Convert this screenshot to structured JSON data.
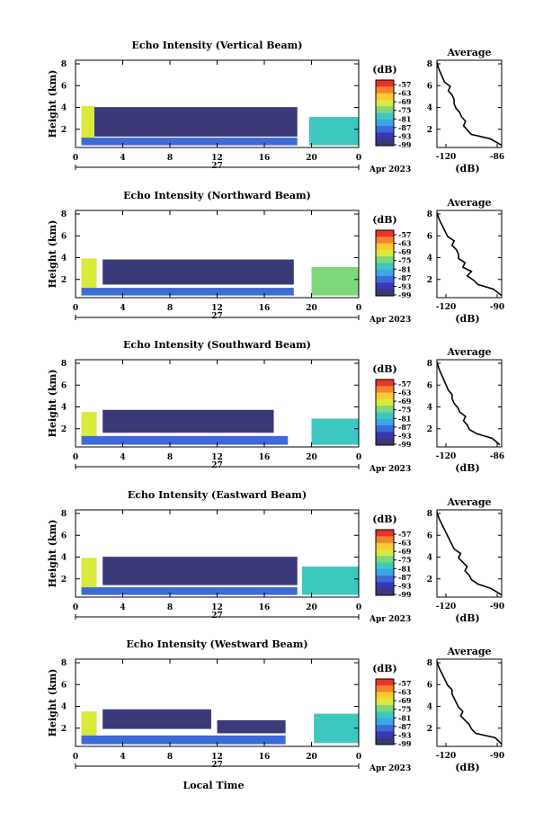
{
  "figure": {
    "xlabel": "Local Time",
    "date_day": "27",
    "date_month": "Apr 2023"
  },
  "colorbar": {
    "unit": "(dB)",
    "ticks": [
      "-57",
      "-63",
      "-69",
      "-75",
      "-81",
      "-87",
      "-93",
      "-99"
    ],
    "colors": [
      "#e8342a",
      "#f6842b",
      "#fcc930",
      "#d9ea3c",
      "#7fd77c",
      "#3ec7c0",
      "#3aa7e6",
      "#3c6ad8",
      "#3a37b4",
      "#3a3a78"
    ]
  },
  "chart_data": [
    {
      "type": "heatmap",
      "title": "Echo Intensity (Vertical Beam)",
      "xlabel": "",
      "ylabel": "Height (km)",
      "xlim": [
        0,
        24
      ],
      "ylim": [
        0,
        8
      ],
      "x_ticks": [
        "0",
        "4",
        "8",
        "12",
        "16",
        "20",
        "0"
      ],
      "y_ticks": [
        "2",
        "4",
        "6",
        "8"
      ],
      "value_unit": "dB",
      "layers": [
        {
          "x": [
            0.5,
            1.6
          ],
          "y": [
            0.3,
            3.8
          ],
          "value": -72
        },
        {
          "x": [
            1.6,
            18.8
          ],
          "y": [
            1.0,
            3.7
          ],
          "value": -98
        },
        {
          "x": [
            0.5,
            18.8
          ],
          "y": [
            0.2,
            0.9
          ],
          "value": -90
        },
        {
          "x": [
            19.8,
            24.0
          ],
          "y": [
            0.2,
            2.8
          ],
          "value": -78
        }
      ],
      "profile": {
        "title": "Average",
        "xlabel": "(dB)",
        "x_ticks": [
          "-120",
          "-86"
        ],
        "y_ticks": [
          "2",
          "4",
          "6",
          "8"
        ],
        "xlim": [
          -120,
          -86
        ],
        "ylim": [
          0,
          8
        ],
        "height_km": [
          0.2,
          0.8,
          1.2,
          1.6,
          2.0,
          2.4,
          2.8,
          3.2,
          3.6,
          4.0,
          4.4,
          4.8,
          5.2,
          5.6,
          6.0,
          6.4,
          6.8,
          7.2,
          7.8
        ],
        "avg_db": [
          -86,
          -92,
          -102,
          -104,
          -106,
          -105,
          -107,
          -108,
          -110,
          -111,
          -111,
          -112,
          -114,
          -113,
          -116,
          -117,
          -118,
          -119,
          -120
        ]
      }
    },
    {
      "type": "heatmap",
      "title": "Echo Intensity (Northward Beam)",
      "xlabel": "",
      "ylabel": "Height (km)",
      "xlim": [
        0,
        24
      ],
      "ylim": [
        0,
        8
      ],
      "x_ticks": [
        "0",
        "4",
        "8",
        "12",
        "16",
        "20",
        "0"
      ],
      "y_ticks": [
        "2",
        "4",
        "6",
        "8"
      ],
      "value_unit": "dB",
      "layers": [
        {
          "x": [
            0.5,
            1.8
          ],
          "y": [
            0.3,
            3.6
          ],
          "value": -72
        },
        {
          "x": [
            2.3,
            18.5
          ],
          "y": [
            1.2,
            3.5
          ],
          "value": -98
        },
        {
          "x": [
            0.5,
            18.5
          ],
          "y": [
            0.2,
            0.9
          ],
          "value": -90
        },
        {
          "x": [
            20.0,
            24.0
          ],
          "y": [
            0.2,
            2.8
          ],
          "value": -76
        }
      ],
      "profile": {
        "title": "Average",
        "xlabel": "(dB)",
        "x_ticks": [
          "-120",
          "-90"
        ],
        "y_ticks": [
          "2",
          "4",
          "6",
          "8"
        ],
        "xlim": [
          -120,
          -90
        ],
        "ylim": [
          0,
          8
        ],
        "height_km": [
          0.2,
          0.8,
          1.2,
          1.6,
          2.0,
          2.4,
          2.8,
          3.2,
          3.6,
          4.0,
          4.4,
          4.8,
          5.2,
          5.6,
          6.0,
          6.4,
          6.8,
          7.2,
          7.8
        ],
        "avg_db": [
          -90,
          -94,
          -101,
          -103,
          -106,
          -104,
          -108,
          -107,
          -110,
          -110,
          -111,
          -113,
          -112,
          -115,
          -116,
          -117,
          -118,
          -119,
          -120
        ]
      }
    },
    {
      "type": "heatmap",
      "title": "Echo Intensity (Southward Beam)",
      "xlabel": "",
      "ylabel": "Height (km)",
      "xlim": [
        0,
        24
      ],
      "ylim": [
        0,
        8
      ],
      "x_ticks": [
        "0",
        "4",
        "8",
        "12",
        "16",
        "20",
        "0"
      ],
      "y_ticks": [
        "2",
        "4",
        "6",
        "8"
      ],
      "value_unit": "dB",
      "layers": [
        {
          "x": [
            0.5,
            1.8
          ],
          "y": [
            0.3,
            3.2
          ],
          "value": -72
        },
        {
          "x": [
            2.3,
            16.8
          ],
          "y": [
            1.3,
            3.4
          ],
          "value": -98
        },
        {
          "x": [
            0.5,
            18.0
          ],
          "y": [
            0.2,
            1.0
          ],
          "value": -90
        },
        {
          "x": [
            20.0,
            24.0
          ],
          "y": [
            0.2,
            2.6
          ],
          "value": -78
        }
      ],
      "profile": {
        "title": "Average",
        "xlabel": "(dB)",
        "x_ticks": [
          "-120",
          "-86"
        ],
        "y_ticks": [
          "2",
          "4",
          "6",
          "8"
        ],
        "xlim": [
          -120,
          -86
        ],
        "ylim": [
          0,
          8
        ],
        "height_km": [
          0.2,
          0.8,
          1.2,
          1.6,
          2.0,
          2.4,
          2.8,
          3.2,
          3.6,
          4.0,
          4.4,
          4.8,
          5.2,
          5.6,
          6.0,
          6.4,
          6.8,
          7.2,
          7.8
        ],
        "avg_db": [
          -87,
          -91,
          -99,
          -103,
          -104,
          -106,
          -105,
          -108,
          -109,
          -111,
          -112,
          -112,
          -114,
          -115,
          -116,
          -117,
          -118,
          -119,
          -120
        ]
      }
    },
    {
      "type": "heatmap",
      "title": "Echo Intensity (Eastward Beam)",
      "xlabel": "",
      "ylabel": "Height (km)",
      "xlim": [
        0,
        24
      ],
      "ylim": [
        0,
        8
      ],
      "x_ticks": [
        "0",
        "4",
        "8",
        "12",
        "16",
        "20",
        "0"
      ],
      "y_ticks": [
        "2",
        "4",
        "6",
        "8"
      ],
      "value_unit": "dB",
      "layers": [
        {
          "x": [
            0.5,
            1.8
          ],
          "y": [
            0.3,
            3.6
          ],
          "value": -72
        },
        {
          "x": [
            2.3,
            18.8
          ],
          "y": [
            1.1,
            3.7
          ],
          "value": -98
        },
        {
          "x": [
            0.5,
            18.8
          ],
          "y": [
            0.2,
            0.9
          ],
          "value": -90
        },
        {
          "x": [
            19.2,
            24.0
          ],
          "y": [
            0.2,
            2.8
          ],
          "value": -78
        }
      ],
      "profile": {
        "title": "Average",
        "xlabel": "(dB)",
        "x_ticks": [
          "-120",
          "-90"
        ],
        "y_ticks": [
          "2",
          "4",
          "6",
          "8"
        ],
        "xlim": [
          -120,
          -90
        ],
        "ylim": [
          0,
          8
        ],
        "height_km": [
          0.2,
          0.8,
          1.2,
          1.6,
          2.0,
          2.4,
          2.8,
          3.2,
          3.6,
          4.0,
          4.4,
          4.8,
          5.2,
          5.6,
          6.0,
          6.4,
          6.8,
          7.2,
          7.8
        ],
        "avg_db": [
          -90,
          -95,
          -101,
          -104,
          -105,
          -107,
          -106,
          -108,
          -110,
          -109,
          -112,
          -113,
          -114,
          -115,
          -116,
          -117,
          -118,
          -119,
          -120
        ]
      }
    },
    {
      "type": "heatmap",
      "title": "Echo Intensity (Westward Beam)",
      "xlabel": "",
      "ylabel": "Height (km)",
      "xlim": [
        0,
        24
      ],
      "ylim": [
        0,
        8
      ],
      "x_ticks": [
        "0",
        "4",
        "8",
        "12",
        "16",
        "20",
        "0"
      ],
      "y_ticks": [
        "2",
        "4",
        "6",
        "8"
      ],
      "value_unit": "dB",
      "layers": [
        {
          "x": [
            0.5,
            1.8
          ],
          "y": [
            0.3,
            3.2
          ],
          "value": -72
        },
        {
          "x": [
            2.3,
            11.5
          ],
          "y": [
            1.6,
            3.4
          ],
          "value": -98
        },
        {
          "x": [
            12.0,
            17.8
          ],
          "y": [
            1.2,
            2.4
          ],
          "value": -98
        },
        {
          "x": [
            0.5,
            17.8
          ],
          "y": [
            0.2,
            1.0
          ],
          "value": -90
        },
        {
          "x": [
            20.2,
            24.0
          ],
          "y": [
            0.3,
            3.0
          ],
          "value": -80
        }
      ],
      "profile": {
        "title": "Average",
        "xlabel": "(dB)",
        "x_ticks": [
          "-120",
          "-90"
        ],
        "y_ticks": [
          "2",
          "4",
          "6",
          "8"
        ],
        "xlim": [
          -120,
          -90
        ],
        "ylim": [
          0,
          8
        ],
        "height_km": [
          0.2,
          0.8,
          1.2,
          1.6,
          2.0,
          2.4,
          2.8,
          3.2,
          3.6,
          4.0,
          4.4,
          4.8,
          5.2,
          5.6,
          6.0,
          6.4,
          6.8,
          7.2,
          7.8
        ],
        "avg_db": [
          -90,
          -93,
          -102,
          -104,
          -105,
          -107,
          -109,
          -108,
          -110,
          -111,
          -112,
          -113,
          -113,
          -115,
          -116,
          -117,
          -118,
          -119,
          -120
        ]
      }
    }
  ]
}
